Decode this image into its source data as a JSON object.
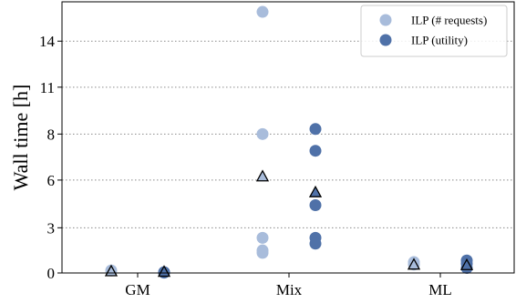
{
  "chart_data": {
    "type": "scatter",
    "ylabel": "Wall time [h]",
    "categories": [
      "GM",
      "Mix",
      "ML"
    ],
    "y_ticks": [
      {
        "value": 0,
        "label": "0"
      },
      {
        "value": 2.7,
        "label": "3"
      },
      {
        "value": 5.55,
        "label": "6"
      },
      {
        "value": 8.3,
        "label": "8"
      },
      {
        "value": 11.1,
        "label": "11"
      },
      {
        "value": 13.85,
        "label": "14"
      }
    ],
    "ylim": [
      0,
      16.2
    ],
    "grid": "horizontal-dotted",
    "legend_position": "top-right",
    "series": [
      {
        "name": "ILP (# requests)",
        "color": "#a8bcdb",
        "points": [
          {
            "category": "GM",
            "y": 0.15
          },
          {
            "category": "Mix",
            "y": 15.6
          },
          {
            "category": "Mix",
            "y": 8.3
          },
          {
            "category": "Mix",
            "y": 2.1
          },
          {
            "category": "Mix",
            "y": 1.35
          },
          {
            "category": "Mix",
            "y": 1.2
          },
          {
            "category": "ML",
            "y": 0.65
          },
          {
            "category": "ML",
            "y": 0.5
          }
        ],
        "mean": [
          {
            "category": "GM",
            "y": 0.08
          },
          {
            "category": "Mix",
            "y": 5.75
          },
          {
            "category": "ML",
            "y": 0.48
          }
        ]
      },
      {
        "name": "ILP (utility)",
        "color": "#4f71a8",
        "points": [
          {
            "category": "GM",
            "y": 0.05
          },
          {
            "category": "GM",
            "y": 0.02
          },
          {
            "category": "Mix",
            "y": 8.6
          },
          {
            "category": "Mix",
            "y": 7.3
          },
          {
            "category": "Mix",
            "y": 4.05
          },
          {
            "category": "Mix",
            "y": 2.1
          },
          {
            "category": "Mix",
            "y": 1.75
          },
          {
            "category": "ML",
            "y": 0.75
          },
          {
            "category": "ML",
            "y": 0.55
          },
          {
            "category": "ML",
            "y": 0.3
          }
        ],
        "mean": [
          {
            "category": "GM",
            "y": 0.05
          },
          {
            "category": "Mix",
            "y": 4.8
          },
          {
            "category": "ML",
            "y": 0.45
          }
        ]
      }
    ]
  }
}
